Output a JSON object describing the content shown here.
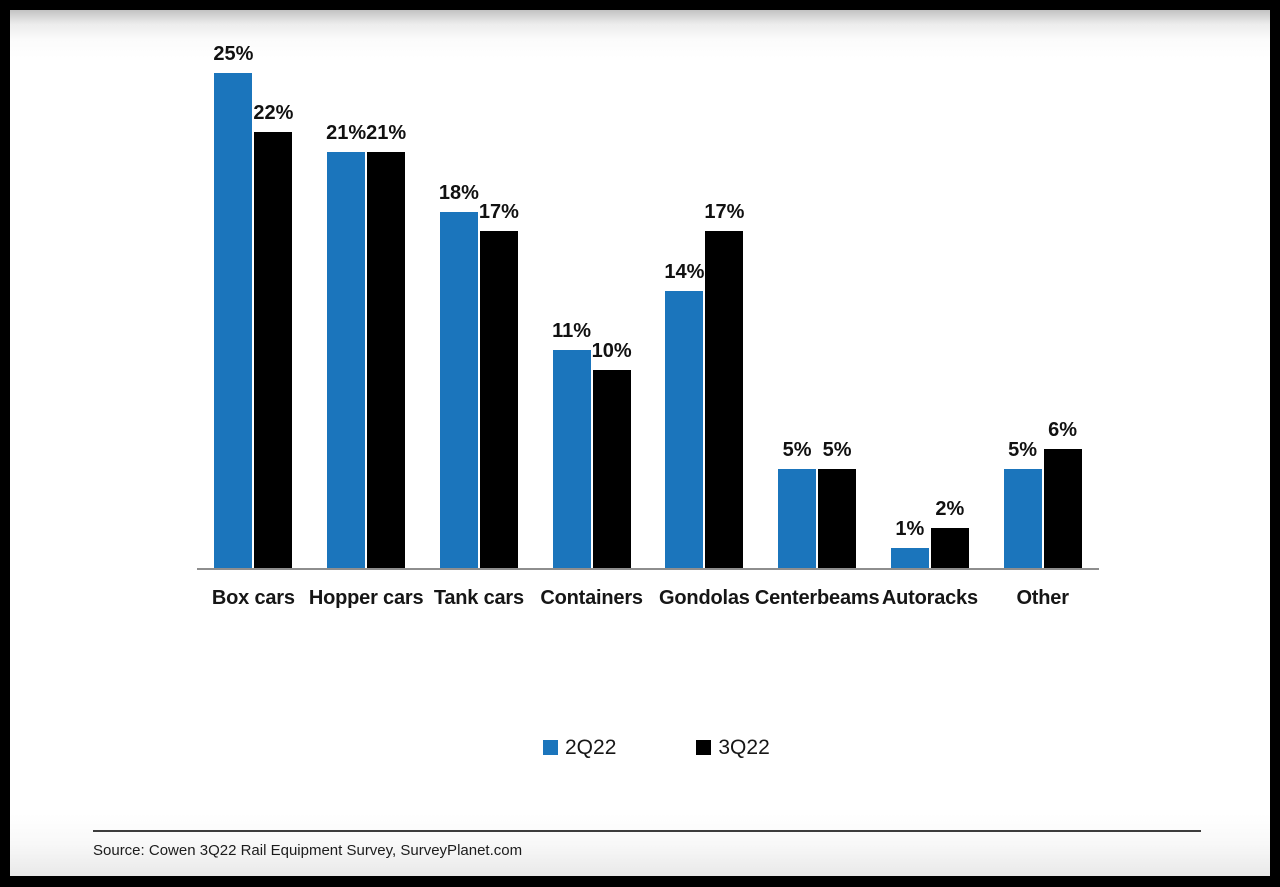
{
  "frame": {
    "border_color": "#000000",
    "page_background": "#ffffff"
  },
  "chart_data": {
    "type": "bar",
    "title": "",
    "xlabel": "",
    "ylabel": "",
    "categories": [
      "Box cars",
      "Hopper cars",
      "Tank cars",
      "Containers",
      "Gondolas",
      "Centerbeams",
      "Autoracks",
      "Other"
    ],
    "series": [
      {
        "name": "2Q22",
        "color": "#1b75bc",
        "values": [
          25,
          21,
          18,
          11,
          14,
          5,
          1,
          5
        ]
      },
      {
        "name": "3Q22",
        "color": "#000000",
        "values": [
          22,
          21,
          17,
          10,
          17,
          5,
          2,
          6
        ]
      }
    ],
    "value_suffix": "%",
    "data_labels": true,
    "ylim": [
      0,
      28
    ],
    "grid": false,
    "axis_line_color": "#8e8e8e",
    "legend_position": "bottom"
  },
  "legend": {
    "items": [
      {
        "label": "2Q22",
        "color": "#1b75bc"
      },
      {
        "label": "3Q22",
        "color": "#000000"
      }
    ]
  },
  "footer": {
    "source": "Source: Cowen 3Q22 Rail Equipment Survey, SurveyPlanet.com"
  }
}
